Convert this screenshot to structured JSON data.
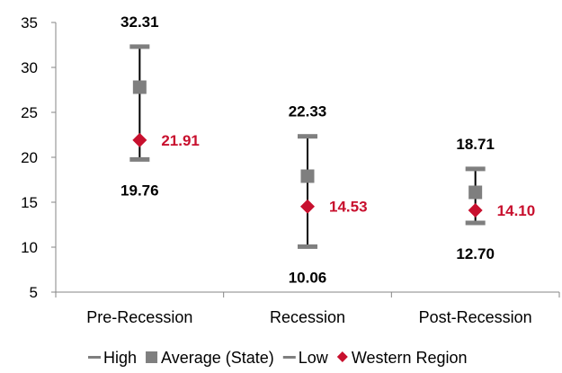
{
  "chart_data": {
    "type": "scatter",
    "categories": [
      "Pre-Recession",
      "Recession",
      "Post-Recession"
    ],
    "ylim": [
      5,
      35
    ],
    "yticks": [
      5,
      10,
      15,
      20,
      25,
      30,
      35
    ],
    "grid": false,
    "legend_position": "bottom",
    "series": [
      {
        "name": "High",
        "values": [
          32.31,
          22.33,
          18.71
        ],
        "color": "#7f7f7f",
        "marker": "dash",
        "labels": [
          "32.31",
          "22.33",
          "18.71"
        ],
        "label_color": "#000000"
      },
      {
        "name": "Average (State)",
        "values": [
          27.8,
          17.9,
          16.1
        ],
        "color": "#7f7f7f",
        "marker": "square"
      },
      {
        "name": "Low",
        "values": [
          19.76,
          10.06,
          12.7
        ],
        "color": "#7f7f7f",
        "marker": "dash",
        "labels": [
          "19.76",
          "10.06",
          "12.70"
        ],
        "label_color": "#000000"
      },
      {
        "name": "Western Region",
        "values": [
          21.91,
          14.53,
          14.1
        ],
        "color": "#c8102e",
        "marker": "diamond",
        "labels": [
          "21.91",
          "14.53",
          "14.10"
        ],
        "label_color": "#c8102e"
      }
    ]
  }
}
